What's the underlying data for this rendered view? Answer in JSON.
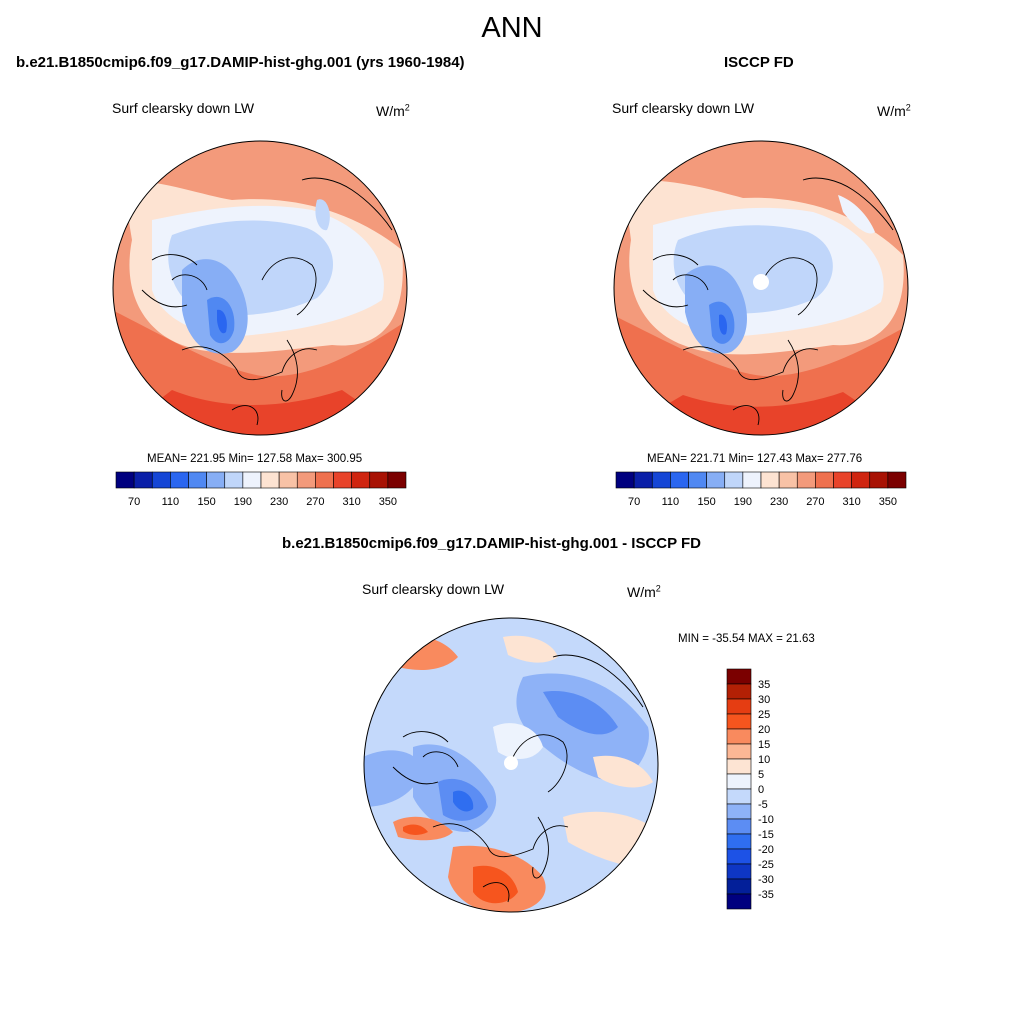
{
  "title": "ANN",
  "panels": [
    {
      "title": "b.e21.B1850cmip6.f09_g17.DAMIP-hist-ghg.001 (yrs 1960-1984)",
      "variable": "Surf clearsky down LW",
      "unit_base": "W/m",
      "unit_sup": "2",
      "stats": "MEAN= 221.95  Min= 127.58  Max= 300.95",
      "pole_hole": false
    },
    {
      "title": "ISCCP FD",
      "variable": "Surf clearsky down LW",
      "unit_base": "W/m",
      "unit_sup": "2",
      "stats": "MEAN= 221.71  Min= 127.43  Max= 277.76",
      "pole_hole": true
    },
    {
      "title": "b.e21.B1850cmip6.f09_g17.DAMIP-hist-ghg.001 - ISCCP FD",
      "variable": "Surf clearsky down LW",
      "unit_base": "W/m",
      "unit_sup": "2",
      "stats": "MIN = -35.54 MAX =  21.63",
      "pole_hole": true
    }
  ],
  "colorbar_abs": {
    "colors": [
      "#00007f",
      "#0a1fa8",
      "#1546d6",
      "#2a66f0",
      "#5088f2",
      "#87aef5",
      "#c0d6fa",
      "#eef3fd",
      "#fde3d2",
      "#f8c2a6",
      "#f39a7b",
      "#ef704e",
      "#e8432a",
      "#cf2510",
      "#a81204",
      "#7b0000"
    ],
    "tick_labels": [
      "70",
      "110",
      "150",
      "190",
      "230",
      "270",
      "310",
      "350"
    ]
  },
  "colorbar_diff": {
    "colors": [
      "#7b0000",
      "#b32005",
      "#e53d12",
      "#f6551e",
      "#f98a5e",
      "#fcb795",
      "#fde4d3",
      "#edf3fd",
      "#c4d9fb",
      "#8eb2f7",
      "#5c8df3",
      "#2f6ef0",
      "#1d52e6",
      "#0e36c4",
      "#031f99",
      "#00007f"
    ],
    "tick_labels": [
      "35",
      "30",
      "25",
      "20",
      "15",
      "10",
      "5",
      "0",
      "-5",
      "-10",
      "-15",
      "-20",
      "-25",
      "-30",
      "-35"
    ]
  }
}
